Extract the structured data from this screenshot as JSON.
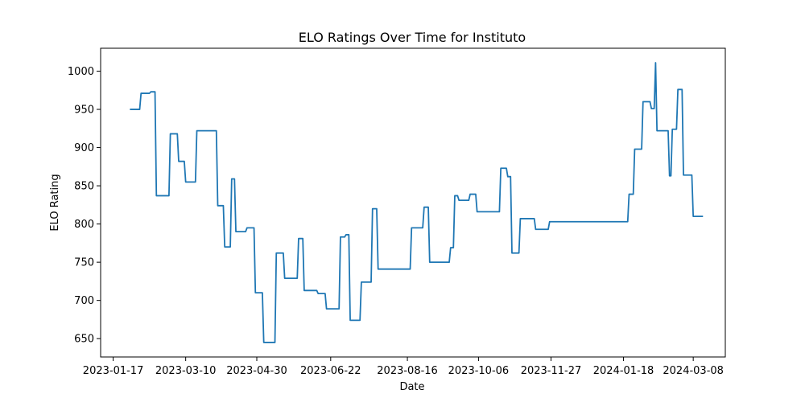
{
  "chart_data": {
    "type": "line",
    "title": "ELO Ratings Over Time for Instituto",
    "xlabel": "Date",
    "ylabel": "ELO Rating",
    "xlim": [
      "2023-01-08",
      "2024-03-31"
    ],
    "ylim": [
      626,
      1030
    ],
    "x_ticks": [
      "2023-01-17",
      "2023-03-10",
      "2023-04-30",
      "2023-06-22",
      "2023-08-16",
      "2023-10-06",
      "2023-11-27",
      "2024-01-18",
      "2024-03-08"
    ],
    "y_ticks": [
      650,
      700,
      750,
      800,
      850,
      900,
      950,
      1000
    ],
    "grid": false,
    "legend": "none",
    "color": "#1f77b4",
    "series": [
      {
        "points": [
          [
            "2023-01-29",
            950
          ],
          [
            "2023-02-05",
            950
          ],
          [
            "2023-02-06",
            971
          ],
          [
            "2023-02-12",
            971
          ],
          [
            "2023-02-13",
            973
          ],
          [
            "2023-02-16",
            973
          ],
          [
            "2023-02-17",
            837
          ],
          [
            "2023-02-26",
            837
          ],
          [
            "2023-02-27",
            918
          ],
          [
            "2023-03-04",
            918
          ],
          [
            "2023-03-05",
            882
          ],
          [
            "2023-03-09",
            882
          ],
          [
            "2023-03-10",
            855
          ],
          [
            "2023-03-17",
            855
          ],
          [
            "2023-03-18",
            922
          ],
          [
            "2023-04-01",
            922
          ],
          [
            "2023-04-02",
            824
          ],
          [
            "2023-04-06",
            824
          ],
          [
            "2023-04-07",
            770
          ],
          [
            "2023-04-11",
            770
          ],
          [
            "2023-04-12",
            859
          ],
          [
            "2023-04-14",
            859
          ],
          [
            "2023-04-15",
            790
          ],
          [
            "2023-04-22",
            790
          ],
          [
            "2023-04-23",
            795
          ],
          [
            "2023-04-28",
            795
          ],
          [
            "2023-04-29",
            710
          ],
          [
            "2023-05-04",
            710
          ],
          [
            "2023-05-05",
            645
          ],
          [
            "2023-05-13",
            645
          ],
          [
            "2023-05-14",
            762
          ],
          [
            "2023-05-19",
            762
          ],
          [
            "2023-05-20",
            729
          ],
          [
            "2023-05-29",
            729
          ],
          [
            "2023-05-30",
            781
          ],
          [
            "2023-06-02",
            781
          ],
          [
            "2023-06-03",
            713
          ],
          [
            "2023-06-12",
            713
          ],
          [
            "2023-06-13",
            709
          ],
          [
            "2023-06-18",
            709
          ],
          [
            "2023-06-19",
            689
          ],
          [
            "2023-06-28",
            689
          ],
          [
            "2023-06-29",
            783
          ],
          [
            "2023-07-02",
            783
          ],
          [
            "2023-07-03",
            786
          ],
          [
            "2023-07-05",
            786
          ],
          [
            "2023-07-06",
            674
          ],
          [
            "2023-07-13",
            674
          ],
          [
            "2023-07-14",
            724
          ],
          [
            "2023-07-21",
            724
          ],
          [
            "2023-07-22",
            820
          ],
          [
            "2023-07-25",
            820
          ],
          [
            "2023-07-26",
            741
          ],
          [
            "2023-08-18",
            741
          ],
          [
            "2023-08-19",
            795
          ],
          [
            "2023-08-27",
            795
          ],
          [
            "2023-08-28",
            822
          ],
          [
            "2023-08-31",
            822
          ],
          [
            "2023-09-01",
            750
          ],
          [
            "2023-09-15",
            750
          ],
          [
            "2023-09-16",
            769
          ],
          [
            "2023-09-18",
            769
          ],
          [
            "2023-09-19",
            837
          ],
          [
            "2023-09-21",
            837
          ],
          [
            "2023-09-22",
            831
          ],
          [
            "2023-09-29",
            831
          ],
          [
            "2023-09-30",
            839
          ],
          [
            "2023-10-04",
            839
          ],
          [
            "2023-10-05",
            816
          ],
          [
            "2023-10-21",
            816
          ],
          [
            "2023-10-22",
            873
          ],
          [
            "2023-10-26",
            873
          ],
          [
            "2023-10-27",
            862
          ],
          [
            "2023-10-29",
            862
          ],
          [
            "2023-10-30",
            762
          ],
          [
            "2023-11-04",
            762
          ],
          [
            "2023-11-05",
            807
          ],
          [
            "2023-11-15",
            807
          ],
          [
            "2023-11-16",
            793
          ],
          [
            "2023-11-25",
            793
          ],
          [
            "2023-11-26",
            803
          ],
          [
            "2024-01-21",
            803
          ],
          [
            "2024-01-22",
            839
          ],
          [
            "2024-01-25",
            839
          ],
          [
            "2024-01-26",
            898
          ],
          [
            "2024-01-31",
            898
          ],
          [
            "2024-02-01",
            960
          ],
          [
            "2024-02-06",
            960
          ],
          [
            "2024-02-07",
            951
          ],
          [
            "2024-02-09",
            951
          ],
          [
            "2024-02-10",
            1011
          ],
          [
            "2024-02-10",
            1011
          ],
          [
            "2024-02-11",
            922
          ],
          [
            "2024-02-19",
            922
          ],
          [
            "2024-02-20",
            863
          ],
          [
            "2024-02-21",
            863
          ],
          [
            "2024-02-22",
            924
          ],
          [
            "2024-02-25",
            924
          ],
          [
            "2024-02-26",
            976
          ],
          [
            "2024-02-29",
            976
          ],
          [
            "2024-03-01",
            864
          ],
          [
            "2024-03-07",
            864
          ],
          [
            "2024-03-08",
            810
          ],
          [
            "2024-03-15",
            810
          ]
        ]
      }
    ]
  }
}
